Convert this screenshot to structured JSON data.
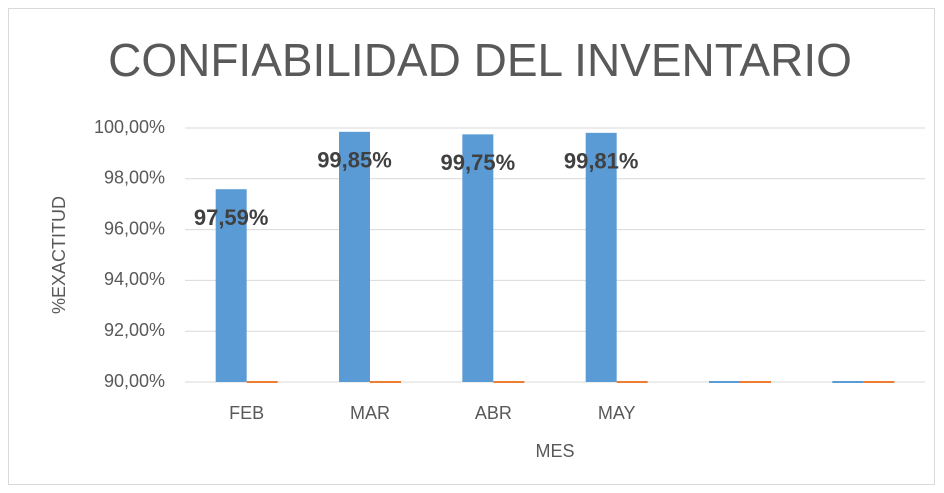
{
  "chart_data": {
    "type": "bar",
    "title": "CONFIABILIDAD DEL INVENTARIO",
    "x_label": "MES",
    "y_label": "%EXACTITUD",
    "categories": [
      "FEB",
      "MAR",
      "ABR",
      "MAY",
      null,
      null
    ],
    "series": [
      {
        "color": "#5b9bd5",
        "values": [
          97.59,
          99.85,
          99.75,
          99.81,
          90,
          90
        ],
        "value_labels": [
          "97,59%",
          "99,85%",
          "99,75%",
          "99,81%",
          null,
          null
        ]
      },
      {
        "color": "#ed7d31",
        "values": [
          90,
          90,
          90,
          90,
          90,
          90
        ]
      }
    ],
    "ylim": [
      90,
      100
    ],
    "yticks": [
      {
        "value": 90,
        "label": "90,00%"
      },
      {
        "value": 92,
        "label": "92,00%"
      },
      {
        "value": 94,
        "label": "94,00%"
      },
      {
        "value": 96,
        "label": "96,00%"
      },
      {
        "value": 98,
        "label": "98,00%"
      },
      {
        "value": 100,
        "label": "100,00%"
      }
    ],
    "grid": true
  }
}
